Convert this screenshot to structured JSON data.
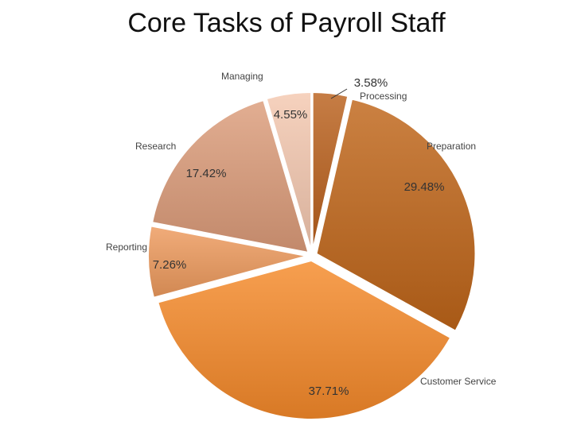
{
  "title": "Core Tasks of Payroll Staff",
  "chart_data": {
    "type": "pie",
    "title": "Core Tasks of Payroll Staff",
    "categories": [
      "Processing",
      "Preparation",
      "Customer Service",
      "Reporting",
      "Research",
      "Managing"
    ],
    "values": [
      3.58,
      29.48,
      37.71,
      7.26,
      17.42,
      4.55
    ],
    "value_labels": [
      "3.58%",
      "29.48%",
      "37.71%",
      "7.26%",
      "17.42%",
      "4.55%"
    ],
    "start": "12 o'clock",
    "direction": "clockwise",
    "exploded": true,
    "colors": [
      "#b9601c",
      "#bf6519",
      "#f58a2a",
      "#ee9a5d",
      "#dc9c7a",
      "#f4c8b0"
    ],
    "legend": "none"
  }
}
